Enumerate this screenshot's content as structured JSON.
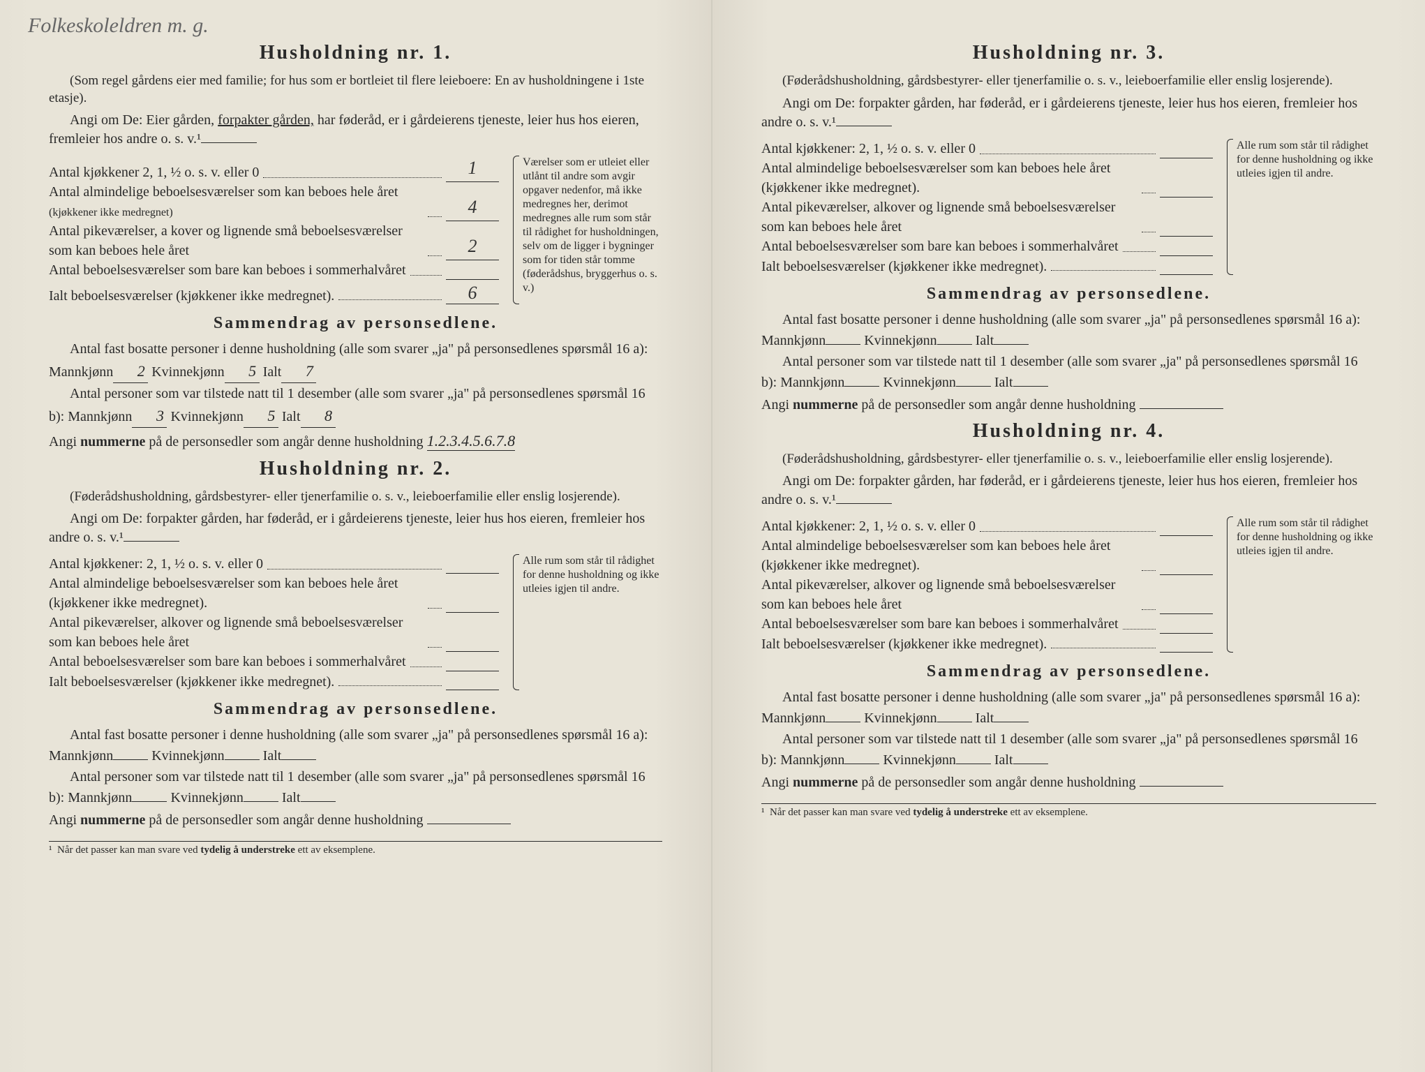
{
  "handwriting": "Folkeskoleldren\nm. g.",
  "households": [
    {
      "title": "Husholdning nr. 1.",
      "subtitle": "(Som regel gårdens eier med familie; for hus som er bortleiet til flere leieboere: En av husholdningene i 1ste etasje).",
      "instruction_pre": "Angi om De:  Eier gården, ",
      "instruction_under": "forpakter gården,",
      "instruction_post": " har føderåd, er i gårdeierens tjeneste, leier hus hos eieren, fremleier hos andre o. s. v.¹",
      "kitchens_label": "Antal kjøkkener 2, 1, ½ o. s. v. eller 0",
      "kitchens_value": "1",
      "rooms_all_year_label": "Antal almindelige beboelsesværelser som kan beboes hele året",
      "rooms_all_year_sub": "(kjøkkener ikke medregnet)",
      "rooms_all_year_value": "4",
      "alcoves_label": "Antal pikeværelser, a kover og lignende små beboelsesværelser som kan beboes hele året",
      "alcoves_value": "2",
      "summer_label": "Antal beboelsesværelser som bare kan beboes i sommerhalvåret",
      "summer_value": "",
      "total_label": "Ialt beboelsesværelser (kjøkkener ikke medregnet).",
      "total_value": "6",
      "sidenote": "Værelser som er utleiet eller utlånt til andre som avgir opgaver nedenfor, må ikke medregnes her, derimot medregnes alle rum som står til rådighet for husholdningen, selv om de ligger i bygninger som for tiden står tomme (føderådshus, bryggerhus o. s. v.)",
      "summary_title": "Sammendrag av personsedlene.",
      "resident_intro": "Antal fast bosatte personer i denne husholdning (alle som svarer „ja\" på personsedlenes spørsmål 16 a):",
      "present_intro": "Antal personer som var tilstede natt til 1 desember (alle som svarer „ja\" på personsedlenes spørsmål 16 b):",
      "male_label": "Mannkjønn",
      "female_label": "Kvinnekjønn",
      "total_persons_label": "Ialt",
      "resident_male": "2",
      "resident_female": "5",
      "resident_total": "7",
      "present_male": "3",
      "present_female": "5",
      "present_total": "8",
      "numbers_label": "Angi nummerne på de personsedler som angår denne husholdning",
      "numbers_value": "1.2.3.4.5.6.7.8"
    },
    {
      "title": "Husholdning nr. 2.",
      "subtitle": "(Føderådshusholdning, gårdsbestyrer- eller tjenerfamilie o. s. v., leieboerfamilie eller enslig losjerende).",
      "instruction_pre": "Angi om De:  forpakter gården, har føderåd, er i gårdeierens tjeneste, leier hus hos eieren, fremleier hos andre o. s. v.¹",
      "instruction_under": "",
      "instruction_post": "",
      "kitchens_label": "Antal kjøkkener: 2, 1, ½ o. s. v. eller 0",
      "kitchens_value": "",
      "rooms_all_year_label": "Antal almindelige beboelsesværelser som kan beboes hele året (kjøkkener ikke medregnet).",
      "rooms_all_year_value": "",
      "alcoves_label": "Antal pikeværelser, alkover og lignende små beboelsesværelser som kan beboes hele året",
      "alcoves_value": "",
      "summer_label": "Antal beboelsesværelser som bare kan beboes i sommerhalvåret",
      "summer_value": "",
      "total_label": "Ialt beboelsesværelser (kjøkkener ikke medregnet).",
      "total_value": "",
      "sidenote": "Alle rum som står til rådighet for denne husholdning og ikke utleies igjen til andre.",
      "summary_title": "Sammendrag av personsedlene.",
      "resident_intro": "Antal fast bosatte personer i denne husholdning (alle som svarer „ja\" på personsedlenes spørsmål 16 a):",
      "present_intro": "Antal personer som var tilstede natt til 1 desember (alle som svarer „ja\" på personsedlenes spørsmål 16 b):",
      "male_label": "Mannkjønn",
      "female_label": "Kvinnekjønn",
      "total_persons_label": "Ialt",
      "resident_male": "",
      "resident_female": "",
      "resident_total": "",
      "present_male": "",
      "present_female": "",
      "present_total": "",
      "numbers_label": "Angi nummerne på de personsedler som angår denne husholdning",
      "numbers_value": ""
    },
    {
      "title": "Husholdning nr. 3.",
      "subtitle": "(Føderådshusholdning, gårdsbestyrer- eller tjenerfamilie o. s. v., leieboerfamilie eller enslig losjerende).",
      "instruction_pre": "Angi om De:  forpakter gården, har føderåd, er i gårdeierens tjeneste, leier hus hos eieren, fremleier hos andre o. s. v.¹",
      "instruction_under": "",
      "instruction_post": "",
      "kitchens_label": "Antal kjøkkener: 2, 1, ½ o. s. v. eller 0",
      "kitchens_value": "",
      "rooms_all_year_label": "Antal almindelige beboelsesværelser som kan beboes hele året (kjøkkener ikke medregnet).",
      "rooms_all_year_value": "",
      "alcoves_label": "Antal pikeværelser, alkover og lignende små beboelsesværelser som kan beboes hele året",
      "alcoves_value": "",
      "summer_label": "Antal beboelsesværelser som bare kan beboes i sommerhalvåret",
      "summer_value": "",
      "total_label": "Ialt beboelsesværelser (kjøkkener ikke medregnet).",
      "total_value": "",
      "sidenote": "Alle rum som står til rådighet for denne husholdning og ikke utleies igjen til andre.",
      "summary_title": "Sammendrag av personsedlene.",
      "resident_intro": "Antal fast bosatte personer i denne husholdning (alle som svarer „ja\" på personsedlenes spørsmål 16 a):",
      "present_intro": "Antal personer som var tilstede natt til 1 desember (alle som svarer „ja\" på personsedlenes spørsmål 16 b):",
      "male_label": "Mannkjønn",
      "female_label": "Kvinnekjønn",
      "total_persons_label": "Ialt",
      "resident_male": "",
      "resident_female": "",
      "resident_total": "",
      "present_male": "",
      "present_female": "",
      "present_total": "",
      "numbers_label": "Angi nummerne på de personsedler som angår denne husholdning",
      "numbers_value": ""
    },
    {
      "title": "Husholdning nr. 4.",
      "subtitle": "(Føderådshusholdning, gårdsbestyrer- eller tjenerfamilie o. s. v., leieboerfamilie eller enslig losjerende).",
      "instruction_pre": "Angi om De:  forpakter gården, har føderåd, er i gårdeierens tjeneste, leier hus hos eieren, fremleier hos andre o. s. v.¹",
      "instruction_under": "",
      "instruction_post": "",
      "kitchens_label": "Antal kjøkkener: 2, 1, ½ o. s. v. eller 0",
      "kitchens_value": "",
      "rooms_all_year_label": "Antal almindelige beboelsesværelser som kan beboes hele året (kjøkkener ikke medregnet).",
      "rooms_all_year_value": "",
      "alcoves_label": "Antal pikeværelser, alkover og lignende små beboelsesværelser som kan beboes hele året",
      "alcoves_value": "",
      "summer_label": "Antal beboelsesværelser som bare kan beboes i sommerhalvåret",
      "summer_value": "",
      "total_label": "Ialt beboelsesværelser (kjøkkener ikke medregnet).",
      "total_value": "",
      "sidenote": "Alle rum som står til rådighet for denne husholdning og ikke utleies igjen til andre.",
      "summary_title": "Sammendrag av personsedlene.",
      "resident_intro": "Antal fast bosatte personer i denne husholdning (alle som svarer „ja\" på personsedlenes spørsmål 16 a):",
      "present_intro": "Antal personer som var tilstede natt til 1 desember (alle som svarer „ja\" på personsedlenes spørsmål 16 b):",
      "male_label": "Mannkjønn",
      "female_label": "Kvinnekjønn",
      "total_persons_label": "Ialt",
      "resident_male": "",
      "resident_female": "",
      "resident_total": "",
      "present_male": "",
      "present_female": "",
      "present_total": "",
      "numbers_label": "Angi nummerne på de personsedler som angår denne husholdning",
      "numbers_value": ""
    }
  ],
  "footnote": "¹  Når det passer kan man svare ved tydelig å understreke ett av eksemplene.",
  "footnote_bold": "tydelig å understreke",
  "bold_word": "nummerne"
}
